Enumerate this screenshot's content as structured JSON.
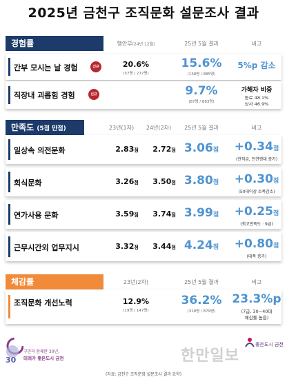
{
  "title": "2025년 금천구 조직문화 설문조사 결과",
  "colors": {
    "navy": "#1c3b6a",
    "orange": "#f28b39",
    "blue": "#4f93d1",
    "badge": "#b7282e"
  },
  "experience": {
    "heading": "경험률",
    "col_prev": "행안부",
    "col_prev_note": "(24년 12월)",
    "col_current": "25년 5월 결과",
    "col_note": "비고",
    "rows": [
      {
        "label": "간부 모시는 날 경험",
        "badge": "신규",
        "prev": "20.6%",
        "prev_sub": "(57명 / 277명)",
        "current": "15.6%",
        "current_sub": "(138명 / 885명)",
        "note": "5%p 감소"
      },
      {
        "label": "직장내 괴롭힘 경험",
        "badge": "신규",
        "prev": "",
        "prev_sub": "",
        "current": "9.7%",
        "current_sub": "(87명 / 893명)",
        "note_title": "가해자 비중",
        "note_l1": "동료 48.1%",
        "note_l2": "상사 46.9%"
      }
    ]
  },
  "satisfaction": {
    "heading": "만족도",
    "heading_small": "(5점 만점)",
    "col_y1": "23년(1차)",
    "col_y2": "24년(2차)",
    "col_current": "25년 5월 결과",
    "col_note": "비고",
    "unit": "점",
    "rows": [
      {
        "label": "일상속 의전문화",
        "y1": "2.83",
        "y2": "2.72",
        "current": "3.06",
        "delta": "+0.34",
        "note": "(전직급, 전연령대 증가)"
      },
      {
        "label": "회식문화",
        "y1": "3.26",
        "y2": "3.50",
        "current": "3.80",
        "delta": "+0.30",
        "note": "(50대이상 소폭감소)"
      },
      {
        "label": "연가사용 문화",
        "y1": "3.59",
        "y2": "3.74",
        "current": "3.99",
        "delta": "+0.25",
        "note": "(최고만족도 : 9급)"
      },
      {
        "label": "근무시간외 업무지시",
        "y1": "3.32",
        "y2": "3.44",
        "current": "4.24",
        "delta": "+0.80",
        "note": "(대폭 증가)"
      }
    ]
  },
  "perception": {
    "heading": "체감률",
    "col_prev": "23년(2차)",
    "col_current": "25년 5월 결과",
    "col_note": "비고",
    "row": {
      "label": "조직문화 개선노력",
      "prev": "12.9%",
      "prev_sub": "(19명 / 147명)",
      "current": "36.2%",
      "current_sub": "(318명 / 879명)",
      "delta": "23.3%p",
      "note_l1": "(7급, 30~40대",
      "note_l2": "체감률 높음)"
    }
  },
  "branding": {
    "emblem_number": "30",
    "logo_line1": "구민과 함께한 30년,",
    "logo_line2": "미래가 좋은도시 금천",
    "brand": "좋은도시 금천",
    "watermark": "한만일보"
  },
  "footer": "(자료: 금천구 조직문화 설문조사 결과 요약)"
}
